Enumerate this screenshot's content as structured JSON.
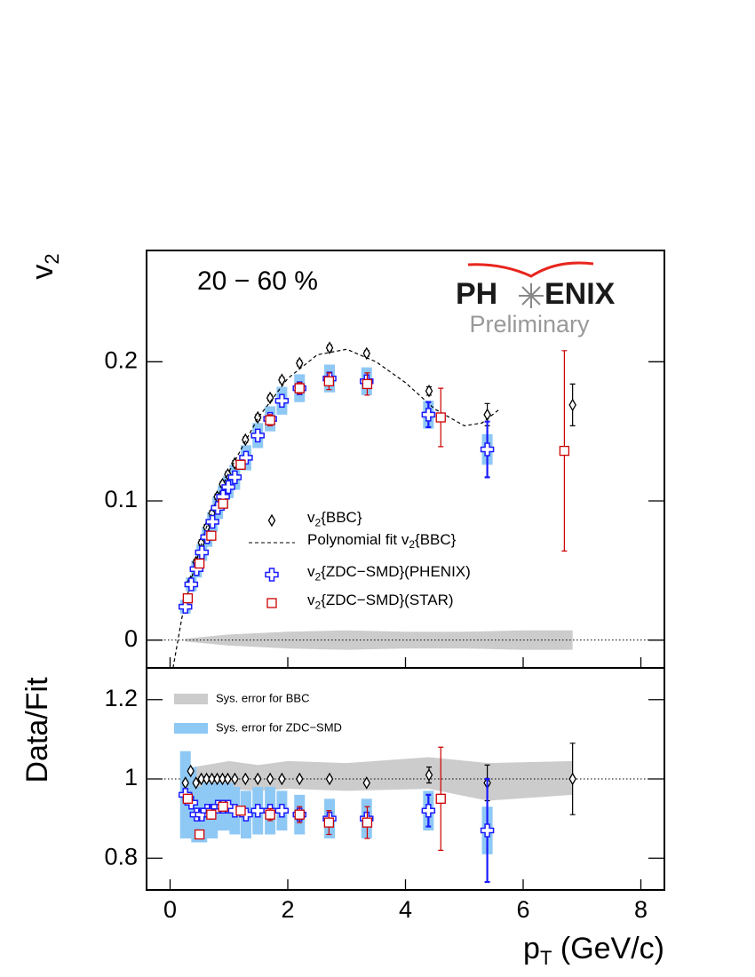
{
  "chart_data": [
    {
      "type": "scatter",
      "ylabel": "v2",
      "annotation": "20 − 60 %",
      "logo": [
        "PH",
        "ENIX"
      ],
      "watermark": "Preliminary",
      "xlim": [
        -0.4,
        8.4
      ],
      "ylim": [
        -0.02,
        0.28
      ],
      "yticks": [
        0,
        0.1,
        0.2
      ],
      "reference_line": 0,
      "band": {
        "color": "#cccccc",
        "x": [
          0.25,
          1,
          2,
          3,
          4,
          5,
          6,
          6.84
        ],
        "low": [
          -0.001,
          -0.004,
          -0.006,
          -0.007,
          -0.006,
          -0.006,
          -0.007,
          -0.007
        ],
        "high": [
          0.001,
          0.004,
          0.006,
          0.007,
          0.006,
          0.006,
          0.007,
          0.007
        ]
      },
      "series": [
        {
          "name": "v2{BBC}",
          "marker": "diamond",
          "color": "#000000",
          "x": [
            0.26,
            0.35,
            0.44,
            0.53,
            0.62,
            0.71,
            0.8,
            0.89,
            0.98,
            1.1,
            1.28,
            1.49,
            1.7,
            1.9,
            2.2,
            2.71,
            3.34,
            4.4,
            5.39,
            6.84
          ],
          "values": [
            0.024,
            0.042,
            0.056,
            0.07,
            0.081,
            0.091,
            0.103,
            0.112,
            0.119,
            0.127,
            0.144,
            0.16,
            0.174,
            0.187,
            0.199,
            0.21,
            0.206,
            0.179,
            0.162,
            0.169
          ],
          "errors": [
            0.002,
            0.002,
            0.002,
            0.002,
            0.002,
            0.002,
            0.002,
            0.002,
            0.002,
            0.002,
            0.002,
            0.002,
            0.002,
            0.002,
            0.002,
            0.002,
            0.002,
            0.003,
            0.008,
            0.015
          ]
        },
        {
          "name": "Polynomial fit v2{BBC}",
          "marker": "line",
          "color": "#000000",
          "x": [
            0.05,
            0.2,
            0.4,
            0.6,
            0.8,
            1.0,
            1.5,
            2.0,
            2.5,
            3.0,
            3.5,
            4.0,
            4.5,
            5.0,
            5.3,
            5.6
          ],
          "values": [
            -0.02,
            0.016,
            0.05,
            0.079,
            0.102,
            0.121,
            0.16,
            0.188,
            0.205,
            0.209,
            0.2,
            0.185,
            0.166,
            0.154,
            0.156,
            0.166
          ]
        },
        {
          "name": "v2{ZDC−SMD}(PHENIX)",
          "marker": "cross",
          "color": "#1a1aff",
          "sys_color": "#8ec8f5",
          "x": [
            0.26,
            0.36,
            0.45,
            0.54,
            0.63,
            0.72,
            0.81,
            0.9,
            0.99,
            1.1,
            1.29,
            1.49,
            1.7,
            1.9,
            2.2,
            2.71,
            3.34,
            4.39,
            5.39
          ],
          "values": [
            0.024,
            0.04,
            0.051,
            0.063,
            0.074,
            0.085,
            0.095,
            0.103,
            0.11,
            0.117,
            0.131,
            0.147,
            0.159,
            0.172,
            0.181,
            0.188,
            0.186,
            0.162,
            0.137
          ],
          "errors": [
            0.002,
            0.002,
            0.002,
            0.002,
            0.002,
            0.002,
            0.002,
            0.002,
            0.002,
            0.002,
            0.002,
            0.002,
            0.002,
            0.002,
            0.002,
            0.003,
            0.003,
            0.009,
            0.02
          ],
          "sys": [
            0.005,
            0.005,
            0.006,
            0.006,
            0.007,
            0.007,
            0.008,
            0.008,
            0.008,
            0.009,
            0.009,
            0.009,
            0.009,
            0.01,
            0.01,
            0.01,
            0.01,
            0.01,
            0.011
          ]
        },
        {
          "name": "v2{ZDC−SMD}(STAR)",
          "marker": "square",
          "color": "#cc0000",
          "x": [
            0.3,
            0.5,
            0.7,
            0.9,
            1.2,
            1.7,
            2.2,
            2.7,
            3.35,
            4.6,
            6.7
          ],
          "values": [
            0.03,
            0.055,
            0.075,
            0.098,
            0.126,
            0.158,
            0.181,
            0.186,
            0.184,
            0.16,
            0.136
          ],
          "errors": [
            0.002,
            0.002,
            0.002,
            0.003,
            0.003,
            0.004,
            0.004,
            0.006,
            0.008,
            0.021,
            0.072
          ]
        }
      ]
    },
    {
      "type": "scatter",
      "ylabel": "Data/Fit",
      "xlabel": "pT (GeV/c)",
      "xlim": [
        -0.4,
        8.4
      ],
      "xticks": [
        0,
        2,
        4,
        6,
        8
      ],
      "ylim": [
        0.72,
        1.28
      ],
      "yticks": [
        0.8,
        1,
        1.2
      ],
      "reference_line": 1,
      "band": {
        "color": "#cccccc",
        "x": [
          0.4,
          1,
          1.5,
          2,
          3,
          4.4,
          5.4,
          6.84
        ],
        "low": [
          0.97,
          0.975,
          0.97,
          0.975,
          0.97,
          0.975,
          0.945,
          0.96
        ],
        "high": [
          1.03,
          1.045,
          1.035,
          1.045,
          1.04,
          1.055,
          1.04,
          1.045
        ]
      },
      "legend": [
        {
          "name": "Sys. error for BBC",
          "color": "#cccccc"
        },
        {
          "name": "Sys. error for ZDC−SMD",
          "color": "#8ec8f5"
        }
      ],
      "series": [
        {
          "marker": "diamond",
          "color": "#000000",
          "x": [
            0.26,
            0.35,
            0.44,
            0.53,
            0.62,
            0.71,
            0.8,
            0.89,
            0.98,
            1.1,
            1.28,
            1.49,
            1.7,
            1.9,
            2.2,
            2.71,
            3.34,
            4.4,
            5.39,
            6.84
          ],
          "values": [
            0.99,
            1.02,
            0.99,
            1.0,
            1.0,
            1.0,
            1.0,
            1.0,
            1.0,
            1.0,
            1.0,
            1.0,
            1.0,
            1.0,
            1.0,
            1.0,
            0.99,
            1.01,
            0.99,
            1.0
          ],
          "errors": [
            0.005,
            0.005,
            0.005,
            0.005,
            0.005,
            0.005,
            0.005,
            0.005,
            0.005,
            0.005,
            0.005,
            0.005,
            0.005,
            0.005,
            0.005,
            0.005,
            0.005,
            0.02,
            0.045,
            0.09
          ]
        },
        {
          "marker": "cross",
          "color": "#1a1aff",
          "sys_color": "#8ec8f5",
          "x": [
            0.26,
            0.36,
            0.45,
            0.54,
            0.63,
            0.72,
            0.81,
            0.9,
            0.99,
            1.1,
            1.29,
            1.49,
            1.7,
            1.9,
            2.2,
            2.71,
            3.34,
            4.39,
            5.39
          ],
          "values": [
            0.96,
            0.94,
            0.91,
            0.91,
            0.92,
            0.92,
            0.93,
            0.93,
            0.93,
            0.92,
            0.91,
            0.92,
            0.92,
            0.92,
            0.91,
            0.9,
            0.9,
            0.92,
            0.87
          ],
          "errors": [
            0.005,
            0.005,
            0.005,
            0.005,
            0.005,
            0.005,
            0.005,
            0.005,
            0.005,
            0.005,
            0.005,
            0.005,
            0.005,
            0.005,
            0.005,
            0.01,
            0.015,
            0.04,
            0.13
          ],
          "sys": [
            0.11,
            0.09,
            0.07,
            0.07,
            0.07,
            0.07,
            0.06,
            0.06,
            0.06,
            0.06,
            0.06,
            0.06,
            0.06,
            0.05,
            0.05,
            0.05,
            0.05,
            0.05,
            0.06
          ]
        },
        {
          "marker": "square",
          "color": "#cc0000",
          "x": [
            0.3,
            0.5,
            0.7,
            0.9,
            1.2,
            1.7,
            2.2,
            2.7,
            3.35,
            4.6,
            6.7
          ],
          "values": [
            0.95,
            0.86,
            0.91,
            0.93,
            0.92,
            0.91,
            0.91,
            0.89,
            0.89,
            0.95,
            null
          ],
          "errors": [
            0.01,
            0.01,
            0.01,
            0.01,
            0.01,
            0.015,
            0.02,
            0.03,
            0.04,
            0.13,
            null
          ]
        }
      ]
    }
  ]
}
